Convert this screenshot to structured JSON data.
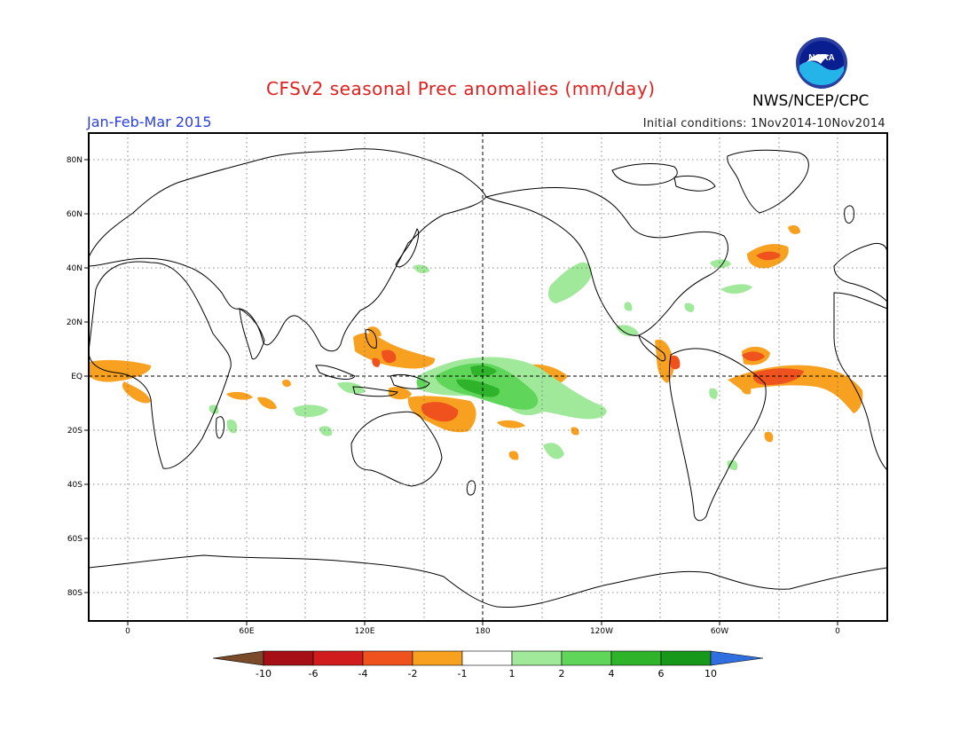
{
  "header": {
    "title": "CFSv2 seasonal Prec anomalies (mm/day)",
    "agency": "NWS/NCEP/CPC",
    "season": "Jan-Feb-Mar 2015",
    "initial_conditions": "Initial conditions: 1Nov2014-10Nov2014",
    "logo_text": "NOAA"
  },
  "map": {
    "lat_labels": [
      "80N",
      "60N",
      "40N",
      "20N",
      "EQ",
      "20S",
      "40S",
      "60S",
      "80S"
    ],
    "lon_labels": [
      "0",
      "60E",
      "120E",
      "180",
      "120W",
      "60W",
      "0"
    ]
  },
  "colorbar": {
    "labels": [
      "-10",
      "-6",
      "-4",
      "-2",
      "-1",
      "1",
      "2",
      "4",
      "6",
      "10"
    ],
    "colors": {
      "lt_-10": "#7a4a2a",
      "-10_-6": "#a50f15",
      "-6_-4": "#d01c1c",
      "-4_-2": "#f0521e",
      "-2_-1": "#f8a020",
      "-1_1": "#ffffff",
      "1_2": "#a0e89a",
      "2_4": "#5fd65a",
      "4_6": "#2fb32a",
      "6_10": "#18981a",
      "gt_10": "#2f6fe0"
    }
  }
}
